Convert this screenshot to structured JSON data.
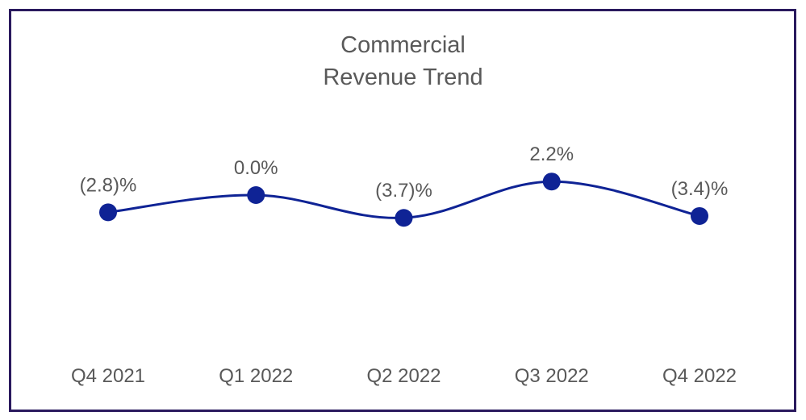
{
  "chart_data": {
    "type": "line",
    "title_lines": [
      "Commercial",
      "Revenue Trend"
    ],
    "categories": [
      "Q4 2021",
      "Q1 2022",
      "Q2 2022",
      "Q3 2022",
      "Q4 2022"
    ],
    "series": [
      {
        "values": [
          -2.8,
          0.0,
          -3.7,
          2.2,
          -3.4
        ],
        "labels": [
          "(2.8)%",
          "0.0%",
          "(3.7)%",
          "2.2%",
          "(3.4)%"
        ]
      }
    ],
    "xlabel": "",
    "ylabel": "",
    "grid": false,
    "legend": "none",
    "smooth": true
  },
  "colors": {
    "line": "#0f2395",
    "marker": "#0f2395",
    "text": "#595959",
    "frame": "#2a1a5e"
  }
}
